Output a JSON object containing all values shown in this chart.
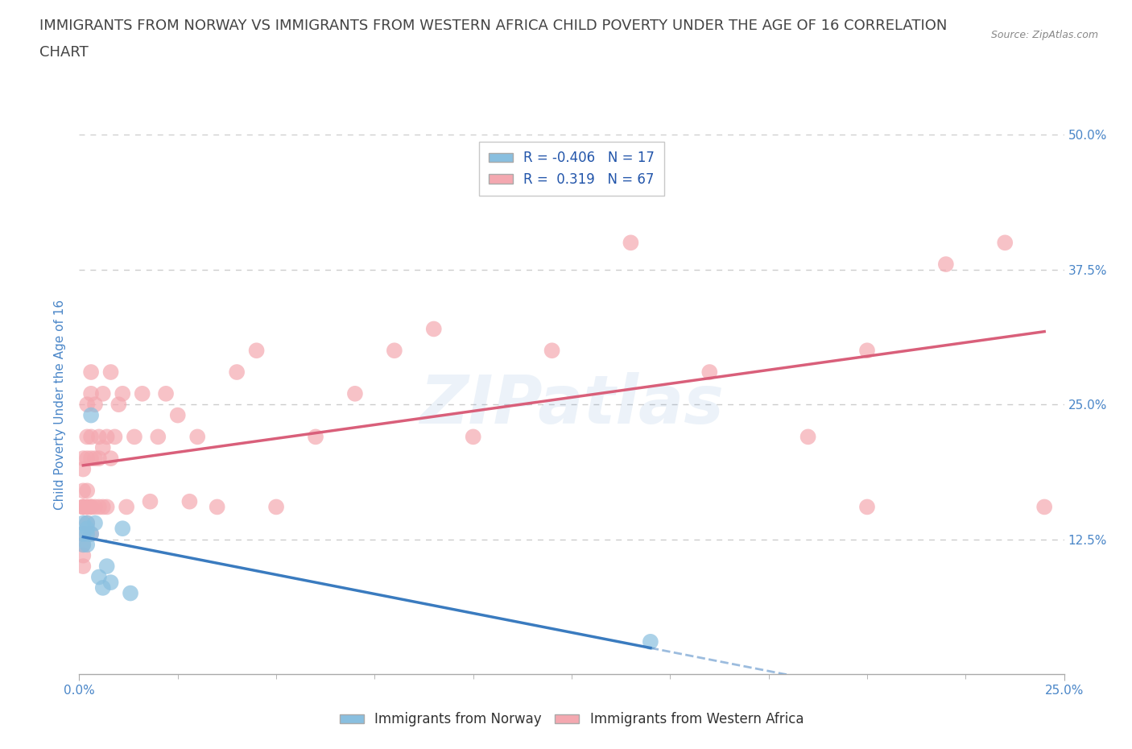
{
  "title_line1": "IMMIGRANTS FROM NORWAY VS IMMIGRANTS FROM WESTERN AFRICA CHILD POVERTY UNDER THE AGE OF 16 CORRELATION",
  "title_line2": "CHART",
  "source": "Source: ZipAtlas.com",
  "ylabel": "Child Poverty Under the Age of 16",
  "legend_label1": "Immigrants from Norway",
  "legend_label2": "Immigrants from Western Africa",
  "R1": "-0.406",
  "N1": "17",
  "R2": "0.319",
  "N2": "67",
  "color1": "#89bfdf",
  "color2": "#f4a8b0",
  "trendline1_color": "#3a7bbf",
  "trendline2_color": "#d95f7a",
  "watermark_text": "ZIPatlas",
  "xlim": [
    0.0,
    0.25
  ],
  "ylim": [
    0.0,
    0.5
  ],
  "yticks": [
    0.0,
    0.125,
    0.25,
    0.375,
    0.5
  ],
  "ytick_labels": [
    "",
    "12.5%",
    "25.0%",
    "37.5%",
    "50.0%"
  ],
  "xtick_labels_bottom": [
    "0.0%",
    "25.0%"
  ],
  "xtick_positions_bottom": [
    0.0,
    0.25
  ],
  "xtick_minor_positions": [
    0.025,
    0.05,
    0.075,
    0.1,
    0.125,
    0.15,
    0.175,
    0.2,
    0.225
  ],
  "norway_x": [
    0.001,
    0.001,
    0.001,
    0.002,
    0.002,
    0.002,
    0.002,
    0.003,
    0.003,
    0.004,
    0.005,
    0.006,
    0.007,
    0.008,
    0.011,
    0.013,
    0.145
  ],
  "norway_y": [
    0.14,
    0.13,
    0.12,
    0.14,
    0.135,
    0.13,
    0.12,
    0.13,
    0.24,
    0.14,
    0.09,
    0.08,
    0.1,
    0.085,
    0.135,
    0.075,
    0.03
  ],
  "western_africa_x": [
    0.001,
    0.001,
    0.001,
    0.001,
    0.001,
    0.001,
    0.001,
    0.001,
    0.001,
    0.001,
    0.002,
    0.002,
    0.002,
    0.002,
    0.002,
    0.002,
    0.002,
    0.003,
    0.003,
    0.003,
    0.003,
    0.003,
    0.003,
    0.003,
    0.004,
    0.004,
    0.004,
    0.005,
    0.005,
    0.005,
    0.006,
    0.006,
    0.006,
    0.007,
    0.007,
    0.008,
    0.008,
    0.009,
    0.01,
    0.011,
    0.012,
    0.014,
    0.016,
    0.018,
    0.02,
    0.022,
    0.025,
    0.028,
    0.03,
    0.035,
    0.04,
    0.045,
    0.05,
    0.06,
    0.07,
    0.08,
    0.09,
    0.1,
    0.12,
    0.14,
    0.16,
    0.185,
    0.2,
    0.22,
    0.235,
    0.245,
    0.2
  ],
  "western_africa_y": [
    0.155,
    0.17,
    0.19,
    0.2,
    0.155,
    0.155,
    0.13,
    0.12,
    0.11,
    0.1,
    0.155,
    0.17,
    0.2,
    0.22,
    0.25,
    0.155,
    0.14,
    0.155,
    0.2,
    0.22,
    0.26,
    0.28,
    0.155,
    0.13,
    0.155,
    0.2,
    0.25,
    0.155,
    0.2,
    0.22,
    0.155,
    0.21,
    0.26,
    0.155,
    0.22,
    0.2,
    0.28,
    0.22,
    0.25,
    0.26,
    0.155,
    0.22,
    0.26,
    0.16,
    0.22,
    0.26,
    0.24,
    0.16,
    0.22,
    0.155,
    0.28,
    0.3,
    0.155,
    0.22,
    0.26,
    0.3,
    0.32,
    0.22,
    0.3,
    0.4,
    0.28,
    0.22,
    0.3,
    0.38,
    0.4,
    0.155,
    0.155
  ],
  "background_color": "#ffffff",
  "title_color": "#444444",
  "axis_label_color": "#4a86c8",
  "tick_label_color": "#4a86c8",
  "grid_color": "#cccccc",
  "title_fontsize": 13,
  "ylabel_fontsize": 11,
  "tick_fontsize": 11,
  "legend_fontsize": 12,
  "source_fontsize": 9
}
